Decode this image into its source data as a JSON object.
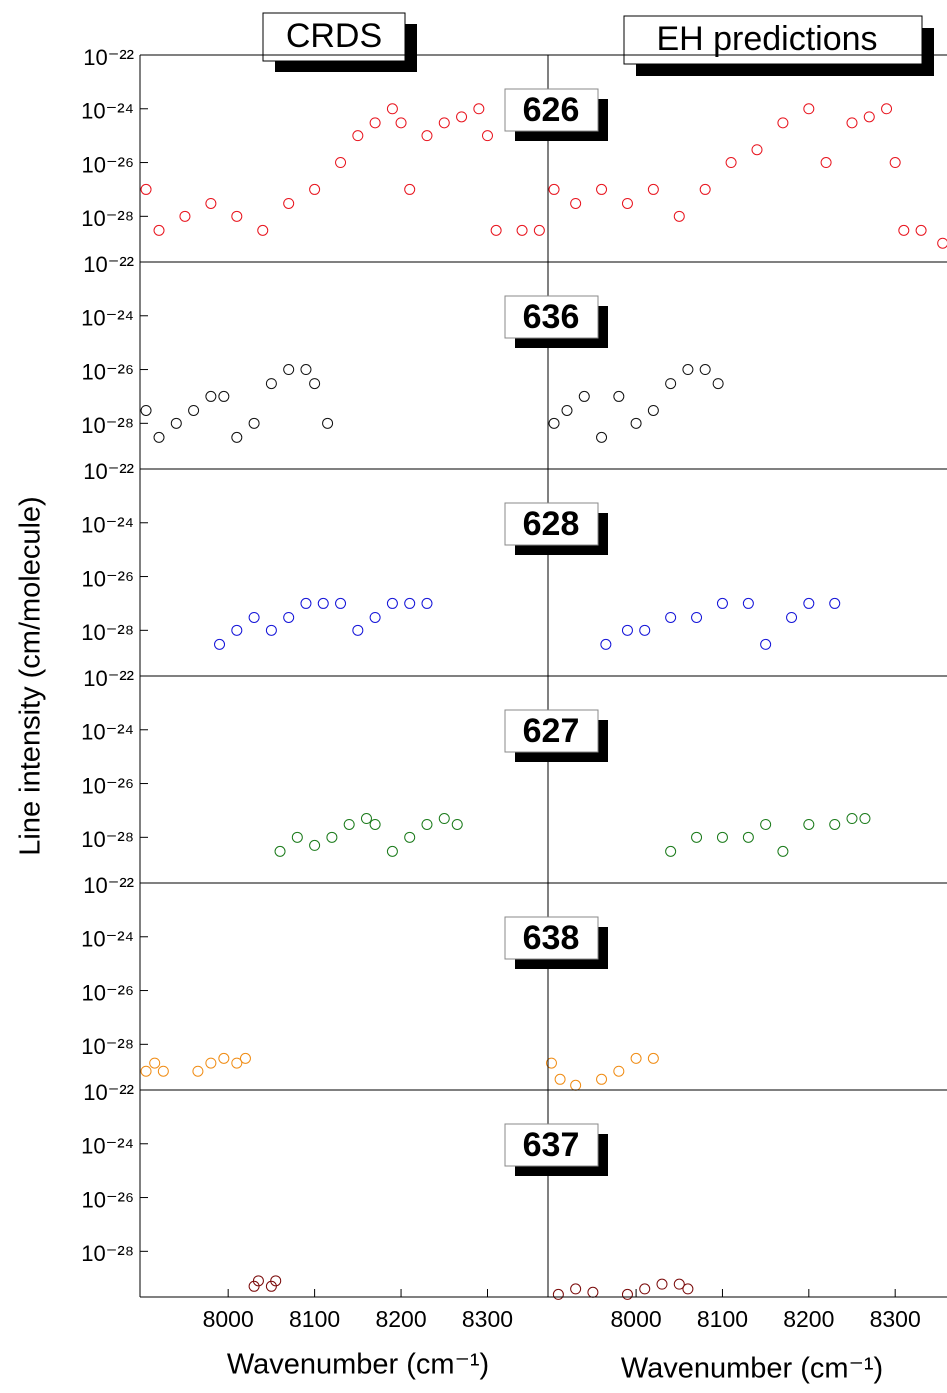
{
  "chart_data": [
    {
      "type": "scatter",
      "title": "CRDS",
      "xlabel": "Wavenumber (cm⁻¹)",
      "ylabel": "Line intensity (cm/molecule)",
      "xlim": [
        7898,
        8370
      ],
      "xticks": [
        8000,
        8100,
        8200,
        8300
      ],
      "log_y": true,
      "ylim": [
        2e-30,
        1e-22
      ],
      "yticks": [
        {
          "value": 1e-22,
          "label": "10⁻²²"
        },
        {
          "value": 1e-24,
          "label": "10⁻²⁴"
        },
        {
          "value": 1e-26,
          "label": "10⁻²⁶"
        },
        {
          "value": 1e-28,
          "label": "10⁻²⁸"
        }
      ],
      "panels": [
        {
          "name": "626",
          "color": "#e8141e",
          "x": [
            7905,
            7920,
            7950,
            7980,
            8010,
            8040,
            8070,
            8100,
            8130,
            8150,
            8170,
            8190,
            8200,
            8210,
            8230,
            8250,
            8270,
            8290,
            8300,
            8310,
            8340,
            8360
          ],
          "values": [
            1e-27,
            3e-29,
            1e-28,
            3e-28,
            1e-28,
            3e-29,
            3e-28,
            1e-27,
            1e-26,
            1e-25,
            3e-25,
            1e-24,
            3e-25,
            1e-27,
            1e-25,
            3e-25,
            5e-25,
            1e-24,
            1e-25,
            3e-29,
            3e-29,
            3e-29
          ]
        },
        {
          "name": "636",
          "color": "#111111",
          "x": [
            7905,
            7920,
            7940,
            7960,
            7980,
            7995,
            8010,
            8030,
            8050,
            8070,
            8090,
            8100,
            8115
          ],
          "values": [
            3e-28,
            3e-29,
            1e-28,
            3e-28,
            1e-27,
            1e-27,
            3e-29,
            1e-28,
            3e-27,
            1e-26,
            1e-26,
            3e-27,
            1e-28
          ]
        },
        {
          "name": "628",
          "color": "#1414d8",
          "x": [
            7990,
            8010,
            8030,
            8050,
            8070,
            8090,
            8110,
            8130,
            8150,
            8170,
            8190,
            8210,
            8230
          ],
          "values": [
            3e-29,
            1e-28,
            3e-28,
            1e-28,
            3e-28,
            1e-27,
            1e-27,
            1e-27,
            1e-28,
            3e-28,
            1e-27,
            1e-27,
            1e-27
          ]
        },
        {
          "name": "627",
          "color": "#1a7a1a",
          "x": [
            8060,
            8080,
            8100,
            8120,
            8140,
            8160,
            8170,
            8190,
            8210,
            8230,
            8250,
            8265
          ],
          "values": [
            3e-29,
            1e-28,
            5e-29,
            1e-28,
            3e-28,
            5e-28,
            3e-28,
            3e-29,
            1e-28,
            3e-28,
            5e-28,
            3e-28
          ]
        },
        {
          "name": "638",
          "color": "#f08c14",
          "x": [
            7905,
            7915,
            7925,
            7965,
            7980,
            7995,
            8010,
            8020
          ],
          "values": [
            1e-29,
            2e-29,
            1e-29,
            1e-29,
            2e-29,
            3e-29,
            2e-29,
            3e-29
          ]
        },
        {
          "name": "637",
          "color": "#7a0a0a",
          "x": [
            8030,
            8035,
            8050,
            8055
          ],
          "values": [
            5e-30,
            8e-30,
            5e-30,
            8e-30
          ]
        }
      ]
    },
    {
      "type": "scatter",
      "title": "EH predictions",
      "xlabel": "Wavenumber (cm⁻¹)",
      "xlim": [
        7898,
        8360
      ],
      "xticks": [
        8000,
        8100,
        8200,
        8300
      ],
      "log_y": true,
      "ylim": [
        2e-30,
        1e-22
      ],
      "panels": [
        {
          "color": "#e8141e",
          "x": [
            7905,
            7930,
            7960,
            7990,
            8020,
            8050,
            8080,
            8110,
            8140,
            8170,
            8200,
            8220,
            8250,
            8270,
            8290,
            8300,
            8310,
            8330,
            8355
          ],
          "values": [
            1e-27,
            3e-28,
            1e-27,
            3e-28,
            1e-27,
            1e-28,
            1e-27,
            1e-26,
            3e-26,
            3e-25,
            1e-24,
            1e-26,
            3e-25,
            5e-25,
            1e-24,
            1e-26,
            3e-29,
            3e-29,
            1e-29
          ]
        },
        {
          "color": "#111111",
          "x": [
            7905,
            7920,
            7940,
            7960,
            7980,
            8000,
            8020,
            8040,
            8060,
            8080,
            8095
          ],
          "values": [
            1e-28,
            3e-28,
            1e-27,
            3e-29,
            1e-27,
            1e-28,
            3e-28,
            3e-27,
            1e-26,
            1e-26,
            3e-27
          ]
        },
        {
          "color": "#1414d8",
          "x": [
            7965,
            7990,
            8010,
            8040,
            8070,
            8100,
            8130,
            8150,
            8180,
            8200,
            8230
          ],
          "values": [
            3e-29,
            1e-28,
            1e-28,
            3e-28,
            3e-28,
            1e-27,
            1e-27,
            3e-29,
            3e-28,
            1e-27,
            1e-27
          ]
        },
        {
          "color": "#1a7a1a",
          "x": [
            8040,
            8070,
            8100,
            8130,
            8150,
            8170,
            8200,
            8230,
            8250,
            8265
          ],
          "values": [
            3e-29,
            1e-28,
            1e-28,
            1e-28,
            3e-28,
            3e-29,
            3e-28,
            3e-28,
            5e-28,
            5e-28
          ]
        },
        {
          "color": "#f08c14",
          "x": [
            7902,
            7912,
            7930,
            7960,
            7980,
            8000,
            8020
          ],
          "values": [
            2e-29,
            5e-30,
            3e-30,
            5e-30,
            1e-29,
            3e-29,
            3e-29
          ]
        },
        {
          "color": "#7a0a0a",
          "x": [
            7910,
            7930,
            7950,
            7990,
            8010,
            8030,
            8050,
            8060
          ],
          "values": [
            2.5e-30,
            4e-30,
            3e-30,
            2.5e-30,
            4e-30,
            6e-30,
            6e-30,
            4e-30
          ]
        }
      ]
    }
  ]
}
